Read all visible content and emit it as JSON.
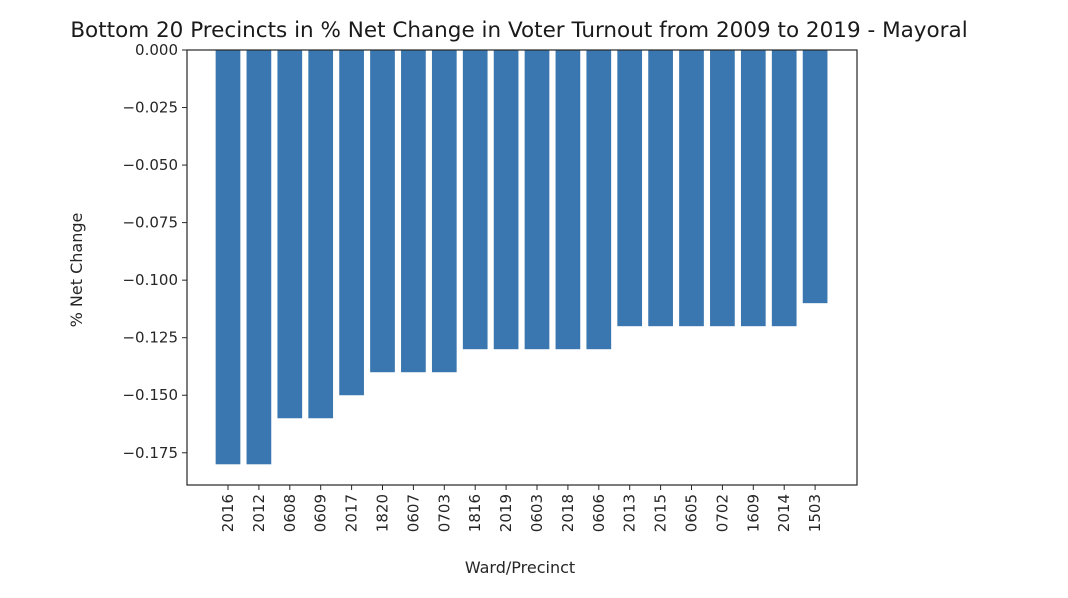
{
  "chart_data": {
    "type": "bar",
    "title": "Bottom 20 Precincts in % Net Change in Voter Turnout from 2009 to 2019 - Mayoral",
    "xlabel": "Ward/Precinct",
    "ylabel": "% Net Change",
    "categories": [
      "2016",
      "2012",
      "0608",
      "0609",
      "2017",
      "1820",
      "0607",
      "0703",
      "1816",
      "2019",
      "0603",
      "2018",
      "0606",
      "2013",
      "2015",
      "0605",
      "0702",
      "1609",
      "2014",
      "1503"
    ],
    "values": [
      -0.18,
      -0.18,
      -0.16,
      -0.16,
      -0.15,
      -0.14,
      -0.14,
      -0.14,
      -0.13,
      -0.13,
      -0.13,
      -0.13,
      -0.13,
      -0.12,
      -0.12,
      -0.12,
      -0.12,
      -0.12,
      -0.12,
      -0.11
    ],
    "ylim": [
      -0.189,
      0.0
    ],
    "yticks": [
      0.0,
      -0.025,
      -0.05,
      -0.075,
      -0.1,
      -0.125,
      -0.15,
      -0.175
    ],
    "ytick_labels": [
      "0.000",
      "−0.025",
      "−0.050",
      "−0.075",
      "−0.100",
      "−0.125",
      "−0.150",
      "−0.175"
    ],
    "bar_color": "#3a76af",
    "grid": false,
    "legend": "none"
  }
}
